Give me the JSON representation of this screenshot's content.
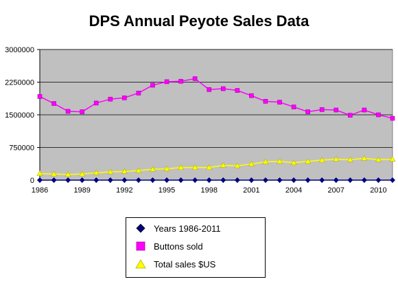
{
  "chart_data": {
    "type": "line",
    "title": "DPS Annual Peyote Sales Data",
    "xlabel": "",
    "ylabel": "",
    "x": [
      1986,
      1987,
      1988,
      1989,
      1990,
      1991,
      1992,
      1993,
      1994,
      1995,
      1996,
      1997,
      1998,
      1999,
      2000,
      2001,
      2002,
      2003,
      2004,
      2005,
      2006,
      2007,
      2008,
      2009,
      2010,
      2011
    ],
    "x_ticks": [
      "1986",
      "1989",
      "1992",
      "1995",
      "1998",
      "2001",
      "2004",
      "2007",
      "2010"
    ],
    "y_ticks": [
      "0",
      "750000",
      "1500000",
      "2250000",
      "3000000"
    ],
    "ylim": [
      0,
      3000000
    ],
    "grid": "horizontal",
    "plot_background": "#c0c0c0",
    "legend_position": "bottom",
    "series": [
      {
        "name": "Years 1986-2011",
        "color": "#000080",
        "marker": "diamond",
        "values": [
          1986,
          1987,
          1988,
          1989,
          1990,
          1991,
          1992,
          1993,
          1994,
          1995,
          1996,
          1997,
          1998,
          1999,
          2000,
          2001,
          2002,
          2003,
          2004,
          2005,
          2006,
          2007,
          2008,
          2009,
          2010,
          2011
        ]
      },
      {
        "name": "Buttons sold",
        "color": "#ff00ff",
        "marker": "square",
        "values": [
          1920000,
          1760000,
          1580000,
          1570000,
          1770000,
          1860000,
          1890000,
          2000000,
          2180000,
          2260000,
          2270000,
          2330000,
          2080000,
          2100000,
          2060000,
          1940000,
          1810000,
          1790000,
          1680000,
          1570000,
          1620000,
          1610000,
          1490000,
          1610000,
          1500000,
          1420000
        ]
      },
      {
        "name": "Total sales $US",
        "color": "#ffff00",
        "marker": "triangle",
        "values": [
          150000,
          140000,
          130000,
          140000,
          170000,
          190000,
          200000,
          220000,
          250000,
          260000,
          290000,
          290000,
          290000,
          340000,
          330000,
          370000,
          420000,
          430000,
          400000,
          430000,
          460000,
          480000,
          470000,
          500000,
          470000,
          480000
        ]
      }
    ]
  }
}
